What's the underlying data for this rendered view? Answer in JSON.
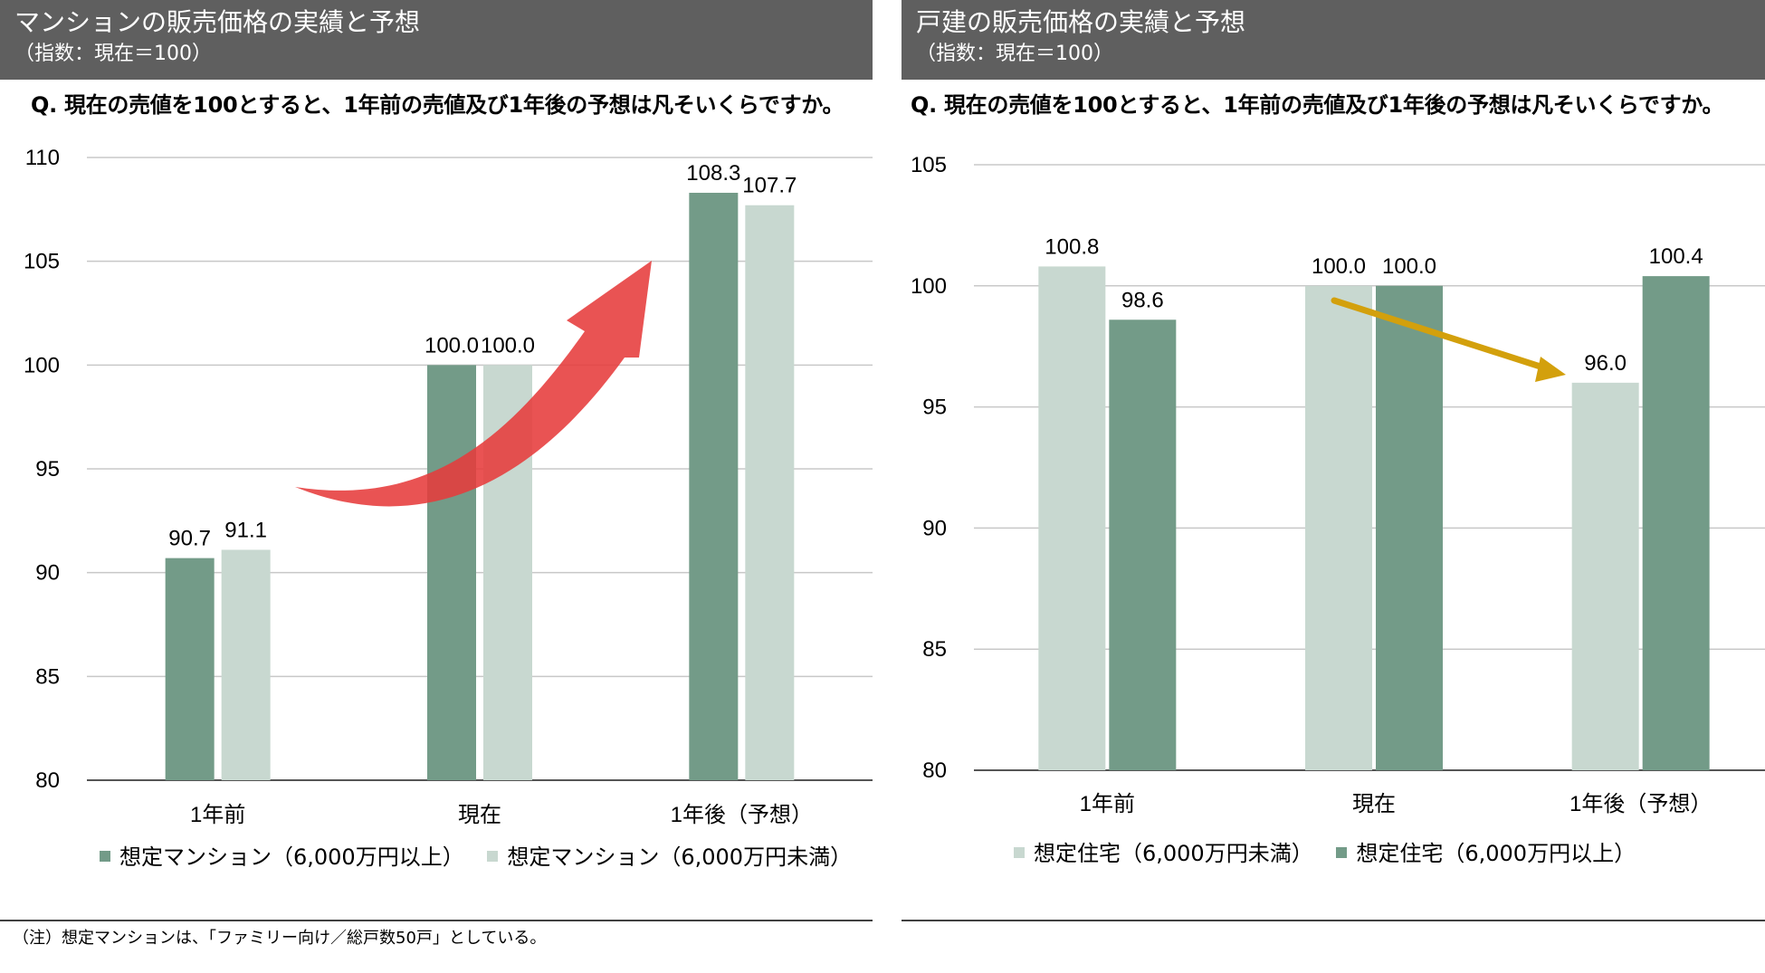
{
  "panels": [
    {
      "header": {
        "title": "マンションの販売価格の実績と予想",
        "subtitle": "（指数：現在＝100）"
      },
      "question": "Q. 現在の売値を100とすると、1年前の売値及び1年後の予想は凡そいくらですか。"
    },
    {
      "header": {
        "title": "戸建の販売価格の実績と予想",
        "subtitle": "（指数：現在＝100）"
      },
      "question": "Q. 現在の売値を100とすると、1年前の売値及び1年後の予想は凡そいくらですか。"
    }
  ],
  "note": "（注）想定マンションは、「ファミリー向け／総戸数50戸」としている。",
  "colors": {
    "dark_green": "#739b88",
    "light_green": "#c8d8d0",
    "header_bg": "#5f5f5f",
    "red_arrow": "#e63b3b",
    "gold_arrow": "#d3a00c",
    "grid": "#c8c8c8"
  },
  "chart_data": [
    {
      "type": "bar",
      "title": "マンションの販売価格の実績と予想",
      "categories": [
        "1年前",
        "現在",
        "1年後（予想）"
      ],
      "series": [
        {
          "name": "想定マンション（6,000万円以上）",
          "values": [
            90.7,
            100.0,
            108.3
          ],
          "color": "#739b88"
        },
        {
          "name": "想定マンション（6,000万円未満）",
          "values": [
            91.1,
            100.0,
            107.7
          ],
          "color": "#c8d8d0"
        }
      ],
      "data_labels": [
        [
          "90.7",
          "100.0",
          "108.3"
        ],
        [
          "91.1",
          "100.0",
          "107.7"
        ]
      ],
      "ylim": [
        80,
        110
      ],
      "yticks": [
        80,
        85,
        90,
        95,
        100,
        105,
        110
      ],
      "grid": true,
      "legend": "bottom",
      "annotation": "red-curved-up-arrow"
    },
    {
      "type": "bar",
      "title": "戸建の販売価格の実績と予想",
      "categories": [
        "1年前",
        "現在",
        "1年後（予想）"
      ],
      "series": [
        {
          "name": "想定住宅（6,000万円未満）",
          "values": [
            100.8,
            100.0,
            96.0
          ],
          "color": "#c8d8d0"
        },
        {
          "name": "想定住宅（6,000万円以上）",
          "values": [
            98.6,
            100.0,
            100.4
          ],
          "color": "#739b88"
        }
      ],
      "data_labels": [
        [
          "100.8",
          "100.0",
          "96.0"
        ],
        [
          "98.6",
          "100.0",
          "100.4"
        ]
      ],
      "ylim": [
        80,
        105
      ],
      "yticks": [
        80,
        85,
        90,
        95,
        100,
        105
      ],
      "grid": true,
      "legend": "bottom",
      "annotation": "gold-down-arrow"
    }
  ]
}
